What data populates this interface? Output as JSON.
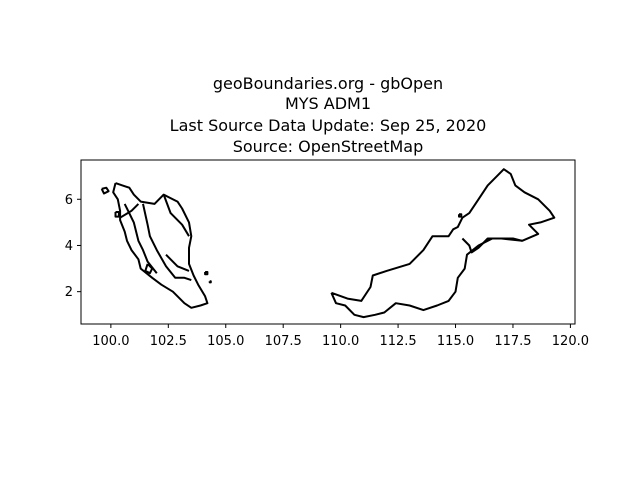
{
  "title_lines": [
    "geoBoundaries.org - gbOpen",
    "MYS ADM1",
    "Last Source Data Update: Sep 25, 2020",
    "Source: OpenStreetMap"
  ],
  "chart_data": {
    "type": "map",
    "xlim": [
      98.7,
      120.2
    ],
    "ylim": [
      0.6,
      7.7
    ],
    "x_ticks": [
      {
        "value": 100.0,
        "label": "100.0"
      },
      {
        "value": 102.5,
        "label": "102.5"
      },
      {
        "value": 105.0,
        "label": "105.0"
      },
      {
        "value": 107.5,
        "label": "107.5"
      },
      {
        "value": 110.0,
        "label": "110.0"
      },
      {
        "value": 112.5,
        "label": "112.5"
      },
      {
        "value": 115.0,
        "label": "115.0"
      },
      {
        "value": 117.5,
        "label": "117.5"
      },
      {
        "value": 120.0,
        "label": "120.0"
      }
    ],
    "y_ticks": [
      {
        "value": 2,
        "label": "2"
      },
      {
        "value": 4,
        "label": "4"
      },
      {
        "value": 6,
        "label": "6"
      }
    ],
    "grid": false,
    "stroke_color": "#000000",
    "regions": [
      {
        "name": "peninsular-outline",
        "coords": [
          [
            100.2,
            6.7
          ],
          [
            100.5,
            6.6
          ],
          [
            100.8,
            6.5
          ],
          [
            101.0,
            6.2
          ],
          [
            101.3,
            5.9
          ],
          [
            101.9,
            5.8
          ],
          [
            102.3,
            6.2
          ],
          [
            102.5,
            6.1
          ],
          [
            102.9,
            5.9
          ],
          [
            103.1,
            5.6
          ],
          [
            103.4,
            5.0
          ],
          [
            103.5,
            4.4
          ],
          [
            103.4,
            3.9
          ],
          [
            103.4,
            3.2
          ],
          [
            103.6,
            2.7
          ],
          [
            103.8,
            2.3
          ],
          [
            104.1,
            1.8
          ],
          [
            104.2,
            1.5
          ],
          [
            103.9,
            1.4
          ],
          [
            103.5,
            1.3
          ],
          [
            103.2,
            1.5
          ],
          [
            102.7,
            2.0
          ],
          [
            102.2,
            2.3
          ],
          [
            101.8,
            2.6
          ],
          [
            101.3,
            3.0
          ],
          [
            101.2,
            3.4
          ],
          [
            100.9,
            3.8
          ],
          [
            100.7,
            4.2
          ],
          [
            100.6,
            4.6
          ],
          [
            100.4,
            5.1
          ],
          [
            100.4,
            5.5
          ],
          [
            100.3,
            6.0
          ],
          [
            100.1,
            6.3
          ],
          [
            100.2,
            6.7
          ]
        ]
      },
      {
        "name": "peninsular-north-division",
        "coords": [
          [
            100.4,
            5.2
          ],
          [
            100.9,
            5.5
          ],
          [
            101.2,
            5.8
          ]
        ]
      },
      {
        "name": "peninsular-west-division",
        "coords": [
          [
            100.6,
            5.8
          ],
          [
            101.0,
            5.0
          ],
          [
            101.2,
            4.2
          ],
          [
            101.4,
            3.8
          ],
          [
            101.6,
            3.3
          ],
          [
            102.0,
            2.8
          ]
        ]
      },
      {
        "name": "peninsular-central-division",
        "coords": [
          [
            101.4,
            5.8
          ],
          [
            101.6,
            4.9
          ],
          [
            101.7,
            4.4
          ],
          [
            102.0,
            3.8
          ],
          [
            102.4,
            3.1
          ],
          [
            102.8,
            2.6
          ],
          [
            103.2,
            2.6
          ],
          [
            103.5,
            2.5
          ]
        ]
      },
      {
        "name": "peninsular-east-division",
        "coords": [
          [
            102.3,
            6.2
          ],
          [
            102.6,
            5.4
          ],
          [
            103.1,
            4.9
          ],
          [
            103.4,
            4.4
          ]
        ]
      },
      {
        "name": "peninsular-south-division",
        "coords": [
          [
            102.4,
            3.6
          ],
          [
            102.9,
            3.1
          ],
          [
            103.4,
            2.9
          ]
        ]
      },
      {
        "name": "peninsular-kl",
        "coords": [
          [
            101.6,
            3.2
          ],
          [
            101.8,
            3.0
          ],
          [
            101.7,
            2.8
          ],
          [
            101.5,
            2.9
          ],
          [
            101.6,
            3.2
          ]
        ]
      },
      {
        "name": "langkawi",
        "coords": [
          [
            99.6,
            6.45
          ],
          [
            99.8,
            6.5
          ],
          [
            99.9,
            6.35
          ],
          [
            99.7,
            6.25
          ],
          [
            99.6,
            6.45
          ]
        ]
      },
      {
        "name": "penang",
        "coords": [
          [
            100.2,
            5.45
          ],
          [
            100.35,
            5.45
          ],
          [
            100.35,
            5.25
          ],
          [
            100.2,
            5.25
          ],
          [
            100.2,
            5.45
          ]
        ]
      },
      {
        "name": "east-islands-1",
        "coords": [
          [
            104.1,
            2.85
          ],
          [
            104.2,
            2.85
          ],
          [
            104.2,
            2.75
          ],
          [
            104.1,
            2.75
          ],
          [
            104.1,
            2.85
          ]
        ]
      },
      {
        "name": "east-islands-2",
        "coords": [
          [
            104.3,
            2.45
          ],
          [
            104.35,
            2.45
          ],
          [
            104.35,
            2.4
          ],
          [
            104.3,
            2.4
          ],
          [
            104.3,
            2.45
          ]
        ]
      },
      {
        "name": "borneo-outline",
        "coords": [
          [
            109.6,
            1.95
          ],
          [
            110.3,
            1.7
          ],
          [
            110.9,
            1.6
          ],
          [
            111.3,
            2.2
          ],
          [
            111.4,
            2.7
          ],
          [
            112.0,
            2.9
          ],
          [
            113.0,
            3.2
          ],
          [
            113.6,
            3.8
          ],
          [
            114.0,
            4.4
          ],
          [
            114.7,
            4.4
          ],
          [
            114.9,
            4.7
          ],
          [
            115.1,
            4.8
          ],
          [
            115.3,
            5.2
          ],
          [
            115.6,
            5.4
          ],
          [
            116.0,
            6.0
          ],
          [
            116.4,
            6.6
          ],
          [
            116.8,
            7.0
          ],
          [
            117.1,
            7.3
          ],
          [
            117.4,
            7.1
          ],
          [
            117.6,
            6.6
          ],
          [
            118.0,
            6.3
          ],
          [
            118.6,
            6.0
          ],
          [
            119.1,
            5.5
          ],
          [
            119.3,
            5.2
          ],
          [
            118.7,
            5.0
          ],
          [
            118.2,
            4.9
          ],
          [
            118.6,
            4.5
          ],
          [
            117.9,
            4.2
          ],
          [
            117.5,
            4.3
          ],
          [
            116.6,
            4.3
          ],
          [
            116.0,
            4.0
          ],
          [
            115.5,
            3.6
          ],
          [
            115.4,
            3.0
          ],
          [
            115.1,
            2.6
          ],
          [
            115.0,
            2.0
          ],
          [
            114.7,
            1.6
          ],
          [
            114.2,
            1.4
          ],
          [
            113.6,
            1.2
          ],
          [
            113.0,
            1.4
          ],
          [
            112.4,
            1.5
          ],
          [
            111.9,
            1.1
          ],
          [
            111.5,
            1.0
          ],
          [
            111.0,
            0.9
          ],
          [
            110.6,
            1.0
          ],
          [
            110.2,
            1.4
          ],
          [
            109.8,
            1.5
          ],
          [
            109.6,
            1.95
          ]
        ]
      },
      {
        "name": "sabah-sarawak-division",
        "coords": [
          [
            115.3,
            4.3
          ],
          [
            115.6,
            4.0
          ],
          [
            115.7,
            3.7
          ],
          [
            116.0,
            3.9
          ],
          [
            116.4,
            4.3
          ],
          [
            117.0,
            4.3
          ],
          [
            117.9,
            4.2
          ]
        ]
      },
      {
        "name": "labuan",
        "coords": [
          [
            115.15,
            5.35
          ],
          [
            115.25,
            5.35
          ],
          [
            115.25,
            5.25
          ],
          [
            115.15,
            5.25
          ],
          [
            115.15,
            5.35
          ]
        ]
      }
    ]
  }
}
